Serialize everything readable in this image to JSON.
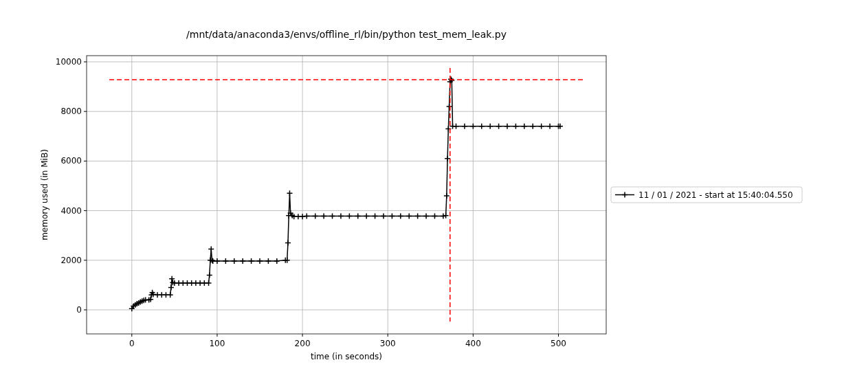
{
  "chart_data": {
    "type": "line",
    "title": "/mnt/data/anaconda3/envs/offline_rl/bin/python test_mem_leak.py",
    "xlabel": "time (in seconds)",
    "ylabel": "memory used (in MiB)",
    "xlim": [
      -53,
      556
    ],
    "ylim": [
      -970,
      10250
    ],
    "xticks": [
      0,
      100,
      200,
      300,
      400,
      500
    ],
    "yticks": [
      0,
      2000,
      4000,
      6000,
      8000,
      10000
    ],
    "grid": true,
    "legend": "right",
    "marker": "cross",
    "line_style": "solid",
    "ref_lines": [
      {
        "axis": "y",
        "value": 9280,
        "color": "#ff0000",
        "line_style": "dashed"
      },
      {
        "axis": "x",
        "value": 373,
        "color": "#ff0000",
        "line_style": "dashed"
      }
    ],
    "series": [
      {
        "name": "11 / 01 / 2021 - start at 15:40:04.550",
        "color": "#000000",
        "x": [
          0,
          2,
          4,
          6,
          8,
          10,
          12,
          14,
          16,
          20,
          22,
          23,
          24,
          25,
          30,
          35,
          40,
          45,
          46,
          47,
          48,
          50,
          55,
          60,
          65,
          70,
          75,
          80,
          85,
          90,
          91,
          92,
          93,
          94,
          95,
          100,
          110,
          120,
          130,
          140,
          150,
          160,
          170,
          180,
          182,
          183,
          184,
          185,
          186,
          188,
          190,
          195,
          200,
          205,
          215,
          225,
          235,
          245,
          255,
          265,
          275,
          285,
          295,
          305,
          315,
          325,
          335,
          345,
          355,
          365,
          368,
          369,
          370,
          371,
          372,
          373,
          374,
          375,
          376,
          380,
          390,
          400,
          410,
          420,
          430,
          440,
          450,
          460,
          470,
          480,
          490,
          500,
          502
        ],
        "values": [
          50,
          150,
          200,
          250,
          280,
          320,
          350,
          380,
          400,
          400,
          420,
          600,
          700,
          620,
          600,
          600,
          600,
          600,
          900,
          1250,
          1100,
          1080,
          1080,
          1080,
          1080,
          1080,
          1080,
          1080,
          1080,
          1080,
          1400,
          2000,
          2450,
          2000,
          1970,
          1970,
          1970,
          1970,
          1970,
          1970,
          1970,
          1970,
          1970,
          2000,
          2000,
          2700,
          3800,
          4700,
          3900,
          3800,
          3760,
          3760,
          3760,
          3780,
          3780,
          3780,
          3780,
          3780,
          3780,
          3780,
          3780,
          3780,
          3780,
          3780,
          3780,
          3780,
          3780,
          3780,
          3780,
          3780,
          3800,
          4600,
          6100,
          7300,
          8200,
          9200,
          9300,
          9250,
          7400,
          7400,
          7400,
          7400,
          7400,
          7400,
          7400,
          7400,
          7400,
          7400,
          7400,
          7400,
          7400,
          7400,
          7400
        ]
      }
    ]
  }
}
